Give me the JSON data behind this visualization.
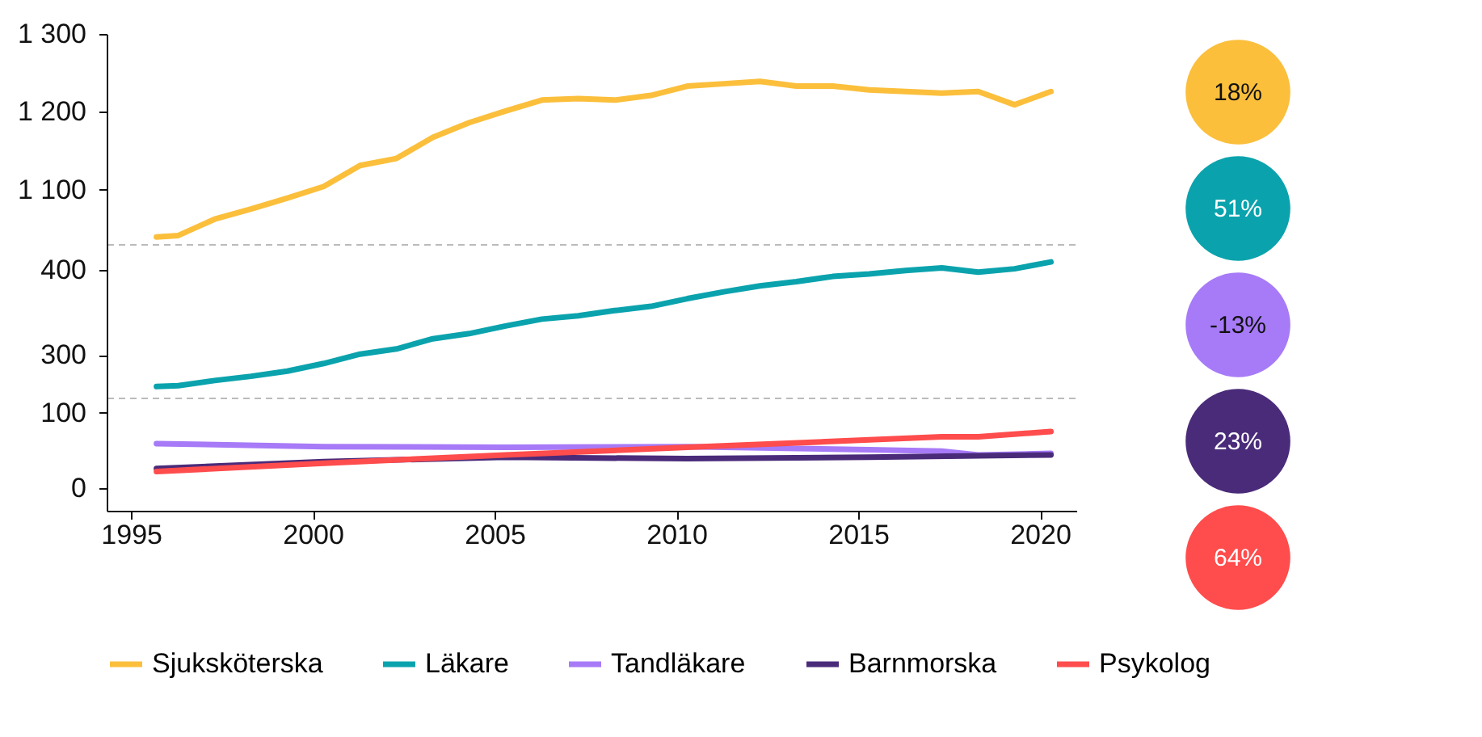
{
  "chart_data": [
    {
      "type": "line",
      "x": [
        1995.7,
        1996.3,
        1997.3,
        1998.3,
        1999.3,
        2000.3,
        2001.3,
        2002.3,
        2003.3,
        2004.3,
        2005.3,
        2006.3,
        2007.3,
        2008.3,
        2009.3,
        2010.3,
        2011.3,
        2012.3,
        2013.3,
        2014.3,
        2015.3,
        2016.3,
        2017.3,
        2018.3,
        2019.3,
        2020.3
      ],
      "xlim": [
        1994.33,
        2021
      ],
      "ylim": [
        1030,
        1300
      ],
      "yticks": [
        {
          "value": 1100,
          "label": "1 100"
        },
        {
          "value": 1200,
          "label": "1 200"
        },
        {
          "value": 1300,
          "label": "1 300"
        }
      ],
      "tick_labels": "y",
      "grid": false,
      "series": [
        {
          "name": "Sjuksköterska",
          "color": "#fbbf3c",
          "values": [
            1039,
            1041,
            1062,
            1075,
            1089,
            1104,
            1131,
            1140,
            1167,
            1186,
            1201,
            1215,
            1217,
            1215,
            1221,
            1233,
            1236,
            1239,
            1233,
            1233,
            1228,
            1226,
            1224,
            1226,
            1209,
            1226
          ]
        }
      ]
    },
    {
      "type": "line",
      "x": [
        1995.7,
        1996.3,
        1997.3,
        1998.3,
        1999.3,
        2000.3,
        2001.3,
        2002.3,
        2003.3,
        2004.3,
        2005.3,
        2006.3,
        2007.3,
        2008.3,
        2009.3,
        2010.3,
        2011.3,
        2012.3,
        2013.3,
        2014.3,
        2015.3,
        2016.3,
        2017.3,
        2018.3,
        2019.3,
        2020.3
      ],
      "xlim": [
        1994.33,
        2021
      ],
      "ylim": [
        250,
        430
      ],
      "yticks": [
        300,
        400
      ],
      "tick_labels": "y",
      "grid": false,
      "series": [
        {
          "name": "Läkare",
          "color": "#0aa3ad",
          "values": [
            263,
            264,
            270,
            275,
            281,
            290,
            301,
            307,
            319,
            325,
            334,
            342,
            346,
            352,
            357,
            366,
            374,
            381,
            386,
            392,
            395,
            399,
            402,
            397,
            401,
            409
          ]
        }
      ]
    },
    {
      "type": "line",
      "xlim": [
        1994.33,
        2021
      ],
      "xticks": [
        1995,
        2000,
        2005,
        2010,
        2015,
        2020
      ],
      "ylim": [
        -30,
        120
      ],
      "yticks": [
        0,
        100
      ],
      "grid": false,
      "legend": "bottom",
      "series": [
        {
          "name": "Tandläkare",
          "color": "#a77af7",
          "x": [
            1995.7,
            2000.3,
            2005.3,
            2010.3,
            2015.3,
            2017.3,
            2018.3,
            2020.3
          ],
          "values": [
            59,
            55,
            54,
            55,
            51,
            49,
            44,
            46
          ]
        },
        {
          "name": "Barnmorska",
          "color": "#4a2b7a",
          "x": [
            1995.7,
            2000.3,
            2005.3,
            2010.3,
            2015.3,
            2020.3
          ],
          "values": [
            26,
            35,
            41,
            39,
            41,
            44
          ]
        },
        {
          "name": "Psykolog",
          "color": "#ff4c4c",
          "x": [
            1995.7,
            2000.3,
            2005.3,
            2010.3,
            2015.3,
            2017.3,
            2018.3,
            2020.3
          ],
          "values": [
            22,
            33,
            44,
            54,
            64,
            68,
            68,
            75
          ]
        }
      ]
    },
    {
      "type": "other",
      "annotations": [
        "18%",
        "51%",
        "-13%",
        "23%",
        "64%"
      ],
      "colors": [
        "#fbbf3c",
        "#0aa3ad",
        "#a77af7",
        "#4a2b7a",
        "#ff4c4c"
      ]
    }
  ]
}
